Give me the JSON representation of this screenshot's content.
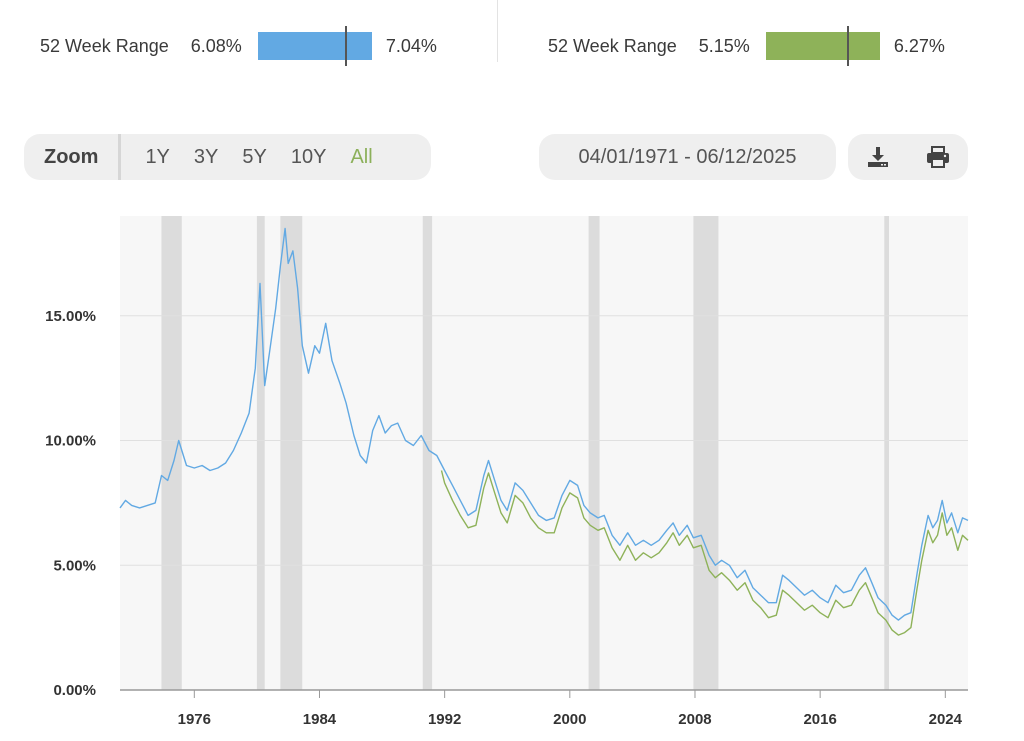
{
  "range_left": {
    "label": "52 Week Range",
    "low": "6.08%",
    "high": "7.04%",
    "color": "#62a9e3",
    "marker_fraction": 0.77
  },
  "range_right": {
    "label": "52 Week Range",
    "low": "5.15%",
    "high": "6.27%",
    "color": "#8eb259",
    "marker_fraction": 0.72
  },
  "zoom": {
    "label": "Zoom",
    "options": [
      "1Y",
      "3Y",
      "5Y",
      "10Y",
      "All"
    ],
    "active": "All"
  },
  "date_range": "04/01/1971 - 06/12/2025",
  "tools": {
    "download_icon": "download-icon",
    "print_icon": "print-icon"
  },
  "chart_data": {
    "type": "line",
    "title": "",
    "xlabel": "",
    "ylabel": "",
    "xlim": [
      1971.25,
      2025.45
    ],
    "ylim": [
      0,
      19
    ],
    "x_ticks": [
      1976,
      1984,
      1992,
      2000,
      2008,
      2016,
      2024
    ],
    "y_ticks": [
      0,
      5,
      10,
      15
    ],
    "y_tick_labels": [
      "0.00%",
      "5.00%",
      "10.00%",
      "15.00%"
    ],
    "grid": true,
    "recession_bands": [
      [
        1973.9,
        1975.2
      ],
      [
        1980.0,
        1980.5
      ],
      [
        1981.5,
        1982.9
      ],
      [
        1990.6,
        1991.2
      ],
      [
        2001.2,
        2001.9
      ],
      [
        2007.9,
        2009.5
      ],
      [
        2020.1,
        2020.4
      ]
    ],
    "series": [
      {
        "color": "#62a9e3",
        "points": [
          [
            1971.25,
            7.3
          ],
          [
            1971.6,
            7.6
          ],
          [
            1972.0,
            7.4
          ],
          [
            1972.5,
            7.3
          ],
          [
            1973.0,
            7.4
          ],
          [
            1973.5,
            7.5
          ],
          [
            1973.9,
            8.6
          ],
          [
            1974.3,
            8.4
          ],
          [
            1974.7,
            9.2
          ],
          [
            1975.0,
            10.0
          ],
          [
            1975.5,
            9.0
          ],
          [
            1976.0,
            8.9
          ],
          [
            1976.5,
            9.0
          ],
          [
            1977.0,
            8.8
          ],
          [
            1977.5,
            8.9
          ],
          [
            1978.0,
            9.1
          ],
          [
            1978.5,
            9.6
          ],
          [
            1979.0,
            10.3
          ],
          [
            1979.5,
            11.1
          ],
          [
            1979.9,
            12.9
          ],
          [
            1980.2,
            16.3
          ],
          [
            1980.5,
            12.2
          ],
          [
            1980.8,
            13.5
          ],
          [
            1981.2,
            15.3
          ],
          [
            1981.5,
            17.0
          ],
          [
            1981.8,
            18.5
          ],
          [
            1982.0,
            17.1
          ],
          [
            1982.3,
            17.6
          ],
          [
            1982.6,
            16.1
          ],
          [
            1982.9,
            13.8
          ],
          [
            1983.3,
            12.7
          ],
          [
            1983.7,
            13.8
          ],
          [
            1984.0,
            13.5
          ],
          [
            1984.4,
            14.7
          ],
          [
            1984.8,
            13.2
          ],
          [
            1985.3,
            12.3
          ],
          [
            1985.7,
            11.5
          ],
          [
            1986.2,
            10.2
          ],
          [
            1986.6,
            9.4
          ],
          [
            1987.0,
            9.1
          ],
          [
            1987.4,
            10.4
          ],
          [
            1987.8,
            11.0
          ],
          [
            1988.2,
            10.3
          ],
          [
            1988.6,
            10.6
          ],
          [
            1989.0,
            10.7
          ],
          [
            1989.5,
            10.0
          ],
          [
            1990.0,
            9.8
          ],
          [
            1990.5,
            10.2
          ],
          [
            1991.0,
            9.6
          ],
          [
            1991.5,
            9.4
          ],
          [
            1992.0,
            8.8
          ],
          [
            1992.5,
            8.2
          ],
          [
            1993.0,
            7.6
          ],
          [
            1993.5,
            7.0
          ],
          [
            1994.0,
            7.2
          ],
          [
            1994.5,
            8.6
          ],
          [
            1994.8,
            9.2
          ],
          [
            1995.2,
            8.4
          ],
          [
            1995.6,
            7.6
          ],
          [
            1996.0,
            7.2
          ],
          [
            1996.5,
            8.3
          ],
          [
            1997.0,
            8.0
          ],
          [
            1997.5,
            7.5
          ],
          [
            1998.0,
            7.0
          ],
          [
            1998.5,
            6.8
          ],
          [
            1999.0,
            6.9
          ],
          [
            1999.5,
            7.8
          ],
          [
            2000.0,
            8.4
          ],
          [
            2000.5,
            8.2
          ],
          [
            2000.9,
            7.4
          ],
          [
            2001.3,
            7.1
          ],
          [
            2001.8,
            6.9
          ],
          [
            2002.2,
            7.0
          ],
          [
            2002.7,
            6.2
          ],
          [
            2003.2,
            5.8
          ],
          [
            2003.7,
            6.3
          ],
          [
            2004.2,
            5.8
          ],
          [
            2004.7,
            6.0
          ],
          [
            2005.2,
            5.8
          ],
          [
            2005.7,
            6.0
          ],
          [
            2006.2,
            6.4
          ],
          [
            2006.6,
            6.7
          ],
          [
            2007.0,
            6.2
          ],
          [
            2007.5,
            6.6
          ],
          [
            2007.9,
            6.1
          ],
          [
            2008.4,
            6.2
          ],
          [
            2008.9,
            5.4
          ],
          [
            2009.3,
            5.0
          ],
          [
            2009.7,
            5.2
          ],
          [
            2010.2,
            5.0
          ],
          [
            2010.7,
            4.5
          ],
          [
            2011.2,
            4.8
          ],
          [
            2011.7,
            4.1
          ],
          [
            2012.2,
            3.8
          ],
          [
            2012.7,
            3.5
          ],
          [
            2013.2,
            3.5
          ],
          [
            2013.6,
            4.6
          ],
          [
            2014.0,
            4.4
          ],
          [
            2014.5,
            4.1
          ],
          [
            2015.0,
            3.8
          ],
          [
            2015.5,
            4.0
          ],
          [
            2016.0,
            3.7
          ],
          [
            2016.5,
            3.5
          ],
          [
            2017.0,
            4.2
          ],
          [
            2017.5,
            3.9
          ],
          [
            2018.0,
            4.0
          ],
          [
            2018.5,
            4.6
          ],
          [
            2018.9,
            4.9
          ],
          [
            2019.3,
            4.3
          ],
          [
            2019.7,
            3.7
          ],
          [
            2020.2,
            3.4
          ],
          [
            2020.6,
            3.0
          ],
          [
            2021.0,
            2.8
          ],
          [
            2021.4,
            3.0
          ],
          [
            2021.8,
            3.1
          ],
          [
            2022.2,
            4.7
          ],
          [
            2022.5,
            5.8
          ],
          [
            2022.9,
            7.0
          ],
          [
            2023.2,
            6.5
          ],
          [
            2023.5,
            6.8
          ],
          [
            2023.8,
            7.6
          ],
          [
            2024.1,
            6.7
          ],
          [
            2024.4,
            7.1
          ],
          [
            2024.8,
            6.3
          ],
          [
            2025.1,
            6.9
          ],
          [
            2025.45,
            6.8
          ]
        ]
      },
      {
        "color": "#8eb259",
        "points": [
          [
            1991.8,
            8.8
          ],
          [
            1992.0,
            8.3
          ],
          [
            1992.5,
            7.6
          ],
          [
            1993.0,
            7.0
          ],
          [
            1993.5,
            6.5
          ],
          [
            1994.0,
            6.6
          ],
          [
            1994.5,
            8.1
          ],
          [
            1994.8,
            8.7
          ],
          [
            1995.2,
            7.9
          ],
          [
            1995.6,
            7.1
          ],
          [
            1996.0,
            6.7
          ],
          [
            1996.5,
            7.8
          ],
          [
            1997.0,
            7.5
          ],
          [
            1997.5,
            6.9
          ],
          [
            1998.0,
            6.5
          ],
          [
            1998.5,
            6.3
          ],
          [
            1999.0,
            6.3
          ],
          [
            1999.5,
            7.3
          ],
          [
            2000.0,
            7.9
          ],
          [
            2000.5,
            7.7
          ],
          [
            2000.9,
            6.9
          ],
          [
            2001.3,
            6.6
          ],
          [
            2001.8,
            6.4
          ],
          [
            2002.2,
            6.5
          ],
          [
            2002.7,
            5.7
          ],
          [
            2003.2,
            5.2
          ],
          [
            2003.7,
            5.8
          ],
          [
            2004.2,
            5.2
          ],
          [
            2004.7,
            5.5
          ],
          [
            2005.2,
            5.3
          ],
          [
            2005.7,
            5.5
          ],
          [
            2006.2,
            5.9
          ],
          [
            2006.6,
            6.3
          ],
          [
            2007.0,
            5.8
          ],
          [
            2007.5,
            6.2
          ],
          [
            2007.9,
            5.7
          ],
          [
            2008.4,
            5.8
          ],
          [
            2008.9,
            4.8
          ],
          [
            2009.3,
            4.5
          ],
          [
            2009.7,
            4.7
          ],
          [
            2010.2,
            4.4
          ],
          [
            2010.7,
            4.0
          ],
          [
            2011.2,
            4.3
          ],
          [
            2011.7,
            3.6
          ],
          [
            2012.2,
            3.3
          ],
          [
            2012.7,
            2.9
          ],
          [
            2013.2,
            3.0
          ],
          [
            2013.6,
            4.0
          ],
          [
            2014.0,
            3.8
          ],
          [
            2014.5,
            3.5
          ],
          [
            2015.0,
            3.2
          ],
          [
            2015.5,
            3.4
          ],
          [
            2016.0,
            3.1
          ],
          [
            2016.5,
            2.9
          ],
          [
            2017.0,
            3.6
          ],
          [
            2017.5,
            3.3
          ],
          [
            2018.0,
            3.4
          ],
          [
            2018.5,
            4.0
          ],
          [
            2018.9,
            4.3
          ],
          [
            2019.3,
            3.7
          ],
          [
            2019.7,
            3.1
          ],
          [
            2020.2,
            2.8
          ],
          [
            2020.6,
            2.4
          ],
          [
            2021.0,
            2.2
          ],
          [
            2021.4,
            2.3
          ],
          [
            2021.8,
            2.5
          ],
          [
            2022.2,
            4.1
          ],
          [
            2022.5,
            5.2
          ],
          [
            2022.9,
            6.4
          ],
          [
            2023.2,
            5.9
          ],
          [
            2023.5,
            6.2
          ],
          [
            2023.8,
            7.1
          ],
          [
            2024.1,
            6.2
          ],
          [
            2024.4,
            6.5
          ],
          [
            2024.8,
            5.6
          ],
          [
            2025.1,
            6.2
          ],
          [
            2025.45,
            6.0
          ]
        ]
      }
    ]
  }
}
